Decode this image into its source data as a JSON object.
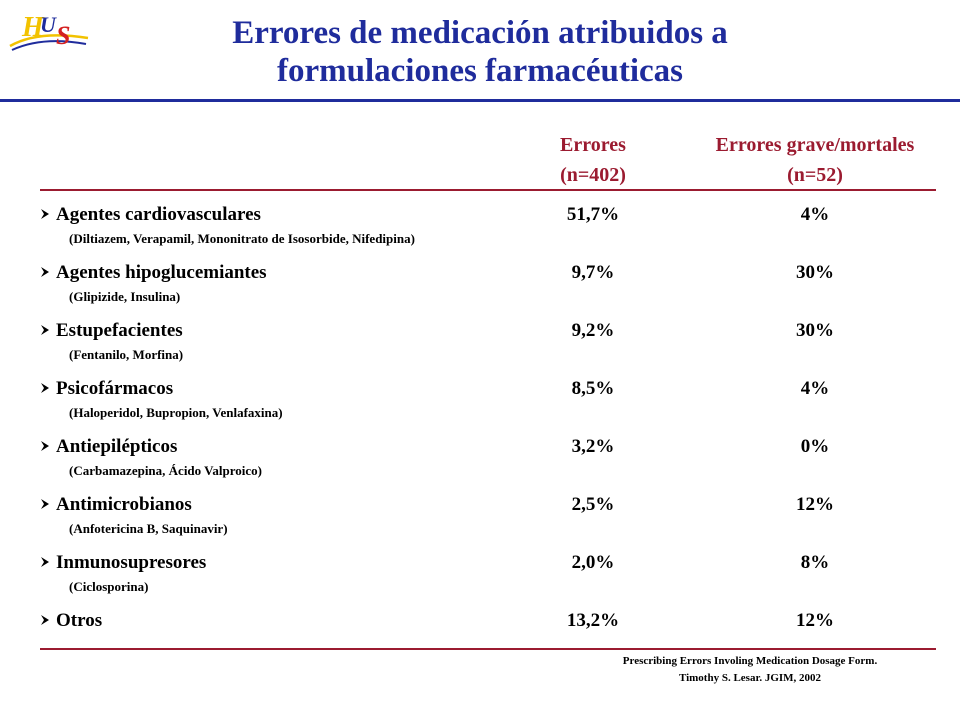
{
  "logo": {
    "text": "HUS",
    "colors": {
      "blue": "#1f2c9c",
      "red": "#d42020",
      "yellow": "#f2c200"
    }
  },
  "title": {
    "line1": "Errores de medicación atribuidos a",
    "line2": "formulaciones farmacéuticas"
  },
  "columns": [
    {
      "label": "Errores",
      "n": "(n=402)"
    },
    {
      "label": "Errores grave/mortales",
      "n": "(n=52)"
    }
  ],
  "rows": [
    {
      "category": "Agentes cardiovasculares",
      "examples": "(Diltiazem, Verapamil, Mononitrato de Isosorbide, Nifedipina)",
      "errores": "51,7%",
      "graves": "4%"
    },
    {
      "category": "Agentes hipoglucemiantes",
      "examples": "(Glipizide, Insulina)",
      "errores": "9,7%",
      "graves": "30%"
    },
    {
      "category": "Estupefacientes",
      "examples": "(Fentanilo, Morfina)",
      "errores": "9,2%",
      "graves": "30%"
    },
    {
      "category": "Psicofármacos",
      "examples": "(Haloperidol, Bupropion, Venlafaxina)",
      "errores": "8,5%",
      "graves": "4%"
    },
    {
      "category": "Antiepilépticos",
      "examples": "(Carbamazepina, Ácido Valproico)",
      "errores": "3,2%",
      "graves": "0%"
    },
    {
      "category": "Antimicrobianos",
      "examples": "(Anfotericina B, Saquinavir)",
      "errores": "2,5%",
      "graves": "12%"
    },
    {
      "category": "Inmunosupresores",
      "examples": "(Ciclosporina)",
      "errores": "2,0%",
      "graves": "8%"
    },
    {
      "category": "Otros",
      "examples": "",
      "errores": "13,2%",
      "graves": "12%"
    }
  ],
  "reference": {
    "line1": "Prescribing Errors Involing Medication Dosage Form.",
    "line2": "Timothy S. Lesar. JGIM, 2002"
  },
  "colors": {
    "title": "#1f2c9c",
    "header": "#9b1b30",
    "rule": "#9b1b30"
  },
  "bullet_icon": "arrowhead-bullet-icon"
}
